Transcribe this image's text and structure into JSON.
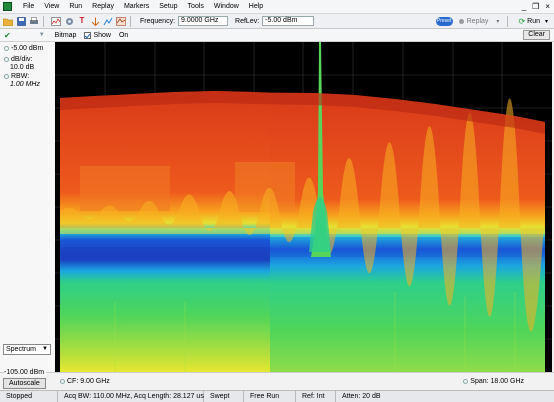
{
  "menubar": {
    "items": [
      "File",
      "View",
      "Run",
      "Replay",
      "Markers",
      "Setup",
      "Tools",
      "Window",
      "Help"
    ],
    "window_controls": [
      "_",
      "❐",
      "×"
    ]
  },
  "toolbar": {
    "frequency_label": "Frequency:",
    "frequency_value": "9.0000 GHz",
    "reflev_label": "RefLev:",
    "reflev_value": "-5.00 dBm",
    "preset_label": "Preset",
    "replay_label": "Replay",
    "run_label": "Run"
  },
  "controls": {
    "bitmap_label": "Bitmap",
    "show_label": "Show",
    "show_value": "On",
    "clear_label": "Clear"
  },
  "left_panel": {
    "ref_level": "-5.00 dBm",
    "db_div_label": "dB/div:",
    "db_div_value": "10.0 dB",
    "rbw_label": "RBW:",
    "rbw_value": "1.00 MHz",
    "view_select": "Spectrum",
    "bottom_level": "-105.00 dBm",
    "autoscale_label": "Autoscale"
  },
  "axis": {
    "cf_label": "CF: 9.00 GHz",
    "span_label": "Span: 18.00 GHz"
  },
  "status": {
    "cells": [
      "Stopped",
      "Acq BW: 110.00 MHz, Acq Length: 28.127 us",
      "Swept",
      "Free Run",
      "Ref: Int",
      "Atten: 20 dB"
    ]
  },
  "colors": {
    "accent": "#1e9a3a",
    "preset": "#2a6ad0",
    "plot_bg": "#000000"
  }
}
